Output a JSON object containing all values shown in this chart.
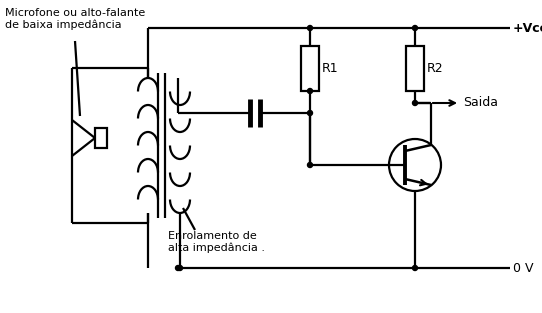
{
  "background_color": "#ffffff",
  "line_color": "#000000",
  "labels": {
    "mic": "Microfone ou alto-falante\nde baixa impedância",
    "winding": "Enrolamento de\nalta impedância .",
    "R1": "R1",
    "R2": "R2",
    "vcc": "+Vcc",
    "gnd": "0 V",
    "saida": "Saida"
  },
  "figsize": [
    5.42,
    3.13
  ],
  "dpi": 100
}
